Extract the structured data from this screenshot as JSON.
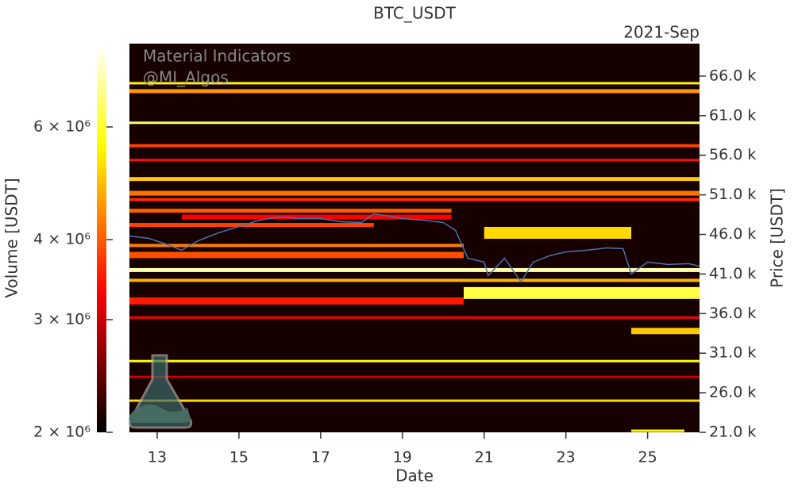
{
  "chart_data": {
    "type": "heatmap",
    "title": "BTC_USDT",
    "offset_label": "2021-Sep",
    "x_label": "Date",
    "y_label": "Price [USDT]",
    "colorbar_label": "Volume [USDT]",
    "watermark": [
      "Material Indicators",
      "@MI_Algos"
    ],
    "xlim": [
      12.32,
      26.27
    ],
    "xticks": [
      13,
      15,
      17,
      19,
      21,
      23,
      25
    ],
    "ylim": [
      21000,
      70100
    ],
    "yticks": [
      {
        "value": 21000,
        "label": "21.0 k"
      },
      {
        "value": 26000,
        "label": "26.0 k"
      },
      {
        "value": 31000,
        "label": "31.0 k"
      },
      {
        "value": 36000,
        "label": "36.0 k"
      },
      {
        "value": 41000,
        "label": "41.0 k"
      },
      {
        "value": 46000,
        "label": "46.0 k"
      },
      {
        "value": 51000,
        "label": "51.0 k"
      },
      {
        "value": 56000,
        "label": "56.0 k"
      },
      {
        "value": 61000,
        "label": "61.0 k"
      },
      {
        "value": 66000,
        "label": "66.0 k"
      }
    ],
    "clim": [
      2000000,
      8050000
    ],
    "color_scale": "log",
    "colormap": "hot",
    "cticks": [
      {
        "value": 2000000,
        "label": "2 × 10⁶"
      },
      {
        "value": 3000000,
        "label": "3 × 10⁶"
      },
      {
        "value": 4000000,
        "label": "4 × 10⁶"
      },
      {
        "value": 6000000,
        "label": "6 × 10⁶"
      }
    ],
    "bands": {
      "price": [
        65100,
        64100,
        60100,
        57200,
        55400,
        53000,
        51200,
        50400,
        49000,
        48200,
        47200,
        46200,
        44600,
        43400,
        41500,
        40200,
        38600,
        37600,
        35500,
        33800,
        30000,
        28000,
        25000,
        21200
      ],
      "height": [
        300,
        500,
        300,
        400,
        300,
        500,
        600,
        400,
        500,
        600,
        500,
        1500,
        400,
        800,
        500,
        400,
        1500,
        900,
        300,
        800,
        300,
        300,
        300,
        300
      ],
      "start": [
        12.32,
        12.32,
        12.32,
        12.32,
        12.32,
        12.32,
        12.32,
        12.32,
        12.32,
        13.6,
        12.32,
        21.0,
        12.32,
        12.32,
        12.32,
        12.32,
        20.5,
        12.32,
        12.32,
        24.6,
        12.32,
        12.32,
        12.32,
        24.6
      ],
      "end": [
        26.27,
        26.27,
        26.27,
        26.27,
        26.27,
        26.27,
        26.27,
        26.27,
        20.2,
        20.2,
        18.3,
        24.6,
        20.5,
        20.5,
        26.27,
        26.27,
        26.27,
        20.5,
        26.27,
        26.27,
        26.27,
        26.27,
        26.27,
        25.9
      ],
      "volume": [
        5500000,
        4500000,
        6500000,
        3800000,
        3400000,
        5000000,
        4200000,
        3600000,
        4000000,
        3300000,
        3800000,
        5200000,
        4300000,
        3900000,
        7200000,
        4800000,
        6200000,
        3500000,
        3300000,
        5000000,
        5600000,
        3000000,
        5200000,
        5600000
      ]
    },
    "series": [
      {
        "name": "BTC_USDT",
        "color": "#4c72b0",
        "x": [
          12.32,
          12.8,
          13.2,
          13.6,
          14.0,
          14.5,
          15.0,
          15.5,
          16.0,
          16.5,
          17.0,
          17.5,
          18.0,
          18.3,
          18.7,
          19.0,
          19.5,
          20.0,
          20.3,
          20.6,
          21.0,
          21.1,
          21.5,
          21.9,
          22.2,
          22.6,
          23.0,
          23.5,
          24.0,
          24.4,
          24.6,
          25.0,
          25.5,
          26.0,
          26.27
        ],
        "values": [
          45800,
          45500,
          44800,
          44000,
          45200,
          46200,
          47000,
          47800,
          48200,
          48000,
          48000,
          47600,
          47500,
          48600,
          48300,
          48000,
          47800,
          47500,
          46500,
          43000,
          42500,
          40800,
          43000,
          40000,
          42500,
          43300,
          43800,
          44000,
          44300,
          44200,
          41000,
          42500,
          42200,
          42300,
          42000
        ]
      }
    ]
  }
}
